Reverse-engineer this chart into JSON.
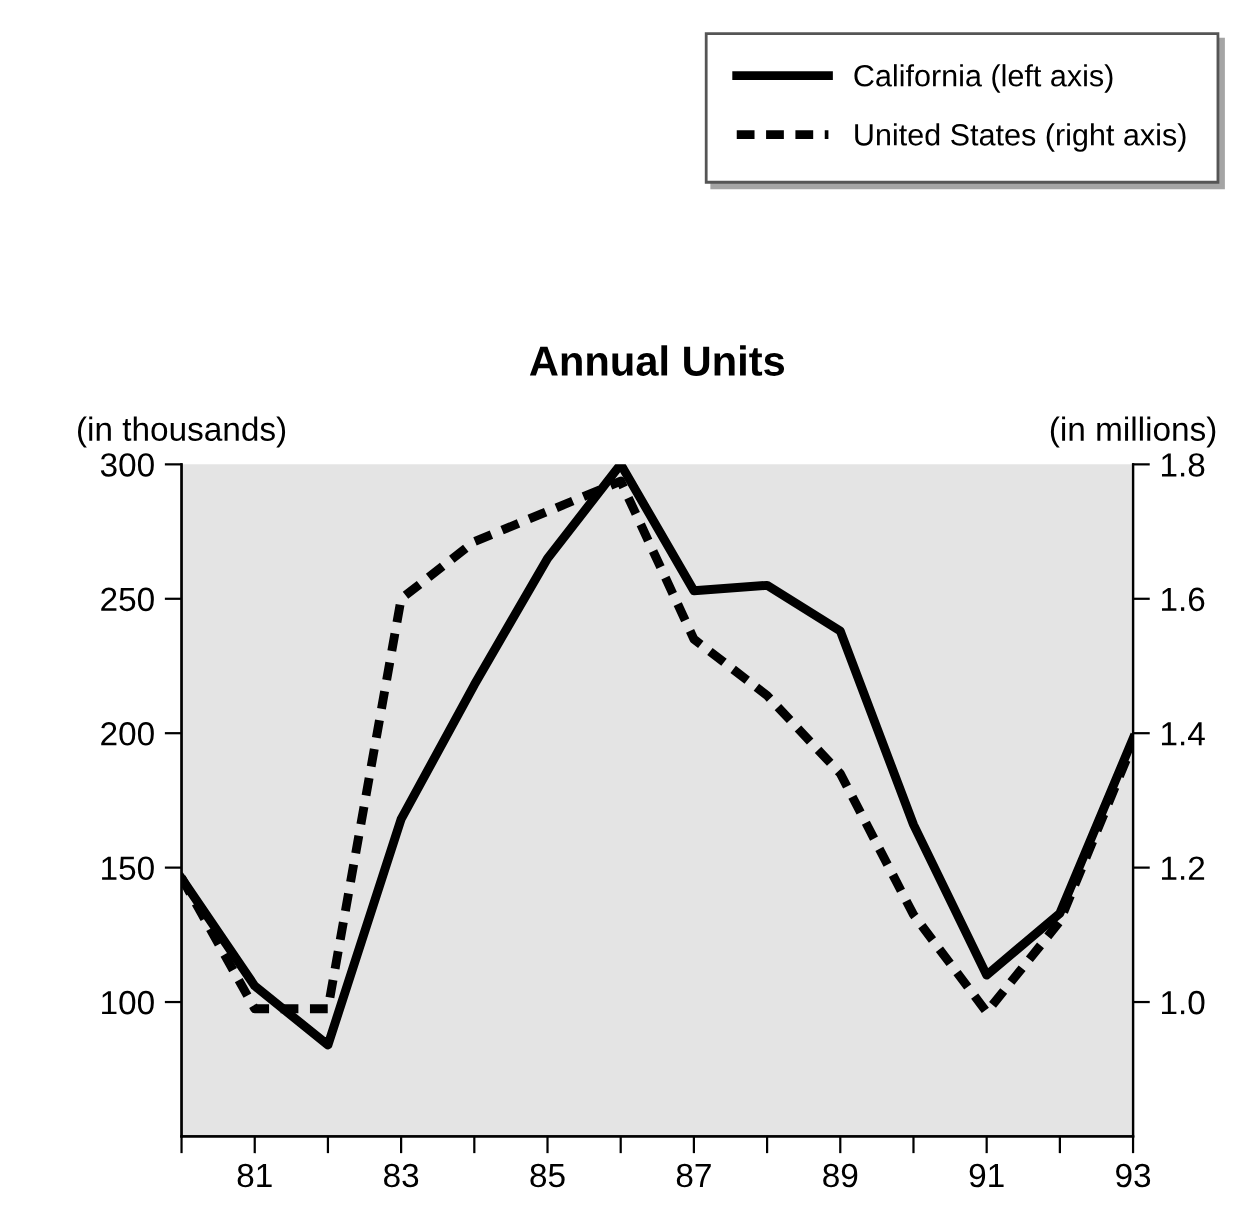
{
  "chart_data": {
    "type": "line",
    "title": "Annual Units",
    "ylabel": "(in thousands)",
    "y2label": "(in millions)",
    "x": [
      80,
      81,
      82,
      83,
      84,
      85,
      86,
      87,
      88,
      89,
      90,
      91,
      92,
      93
    ],
    "series": [
      {
        "name": "California (left axis)",
        "color": "#000000",
        "line_style": "solid",
        "values": [
          146,
          106,
          84,
          168,
          218,
          265,
          300,
          253,
          255,
          238,
          166,
          110,
          133,
          198
        ]
      },
      {
        "name": "United States (right axis)",
        "color": "#000000",
        "line_style": "dotted",
        "axis": "y2",
        "values": [
          1.185,
          0.99,
          0.99,
          1.6,
          1.685,
          1.73,
          1.775,
          1.54,
          1.456,
          1.34,
          1.13,
          0.985,
          1.12,
          1.385
        ]
      }
    ],
    "xlim": [
      80,
      93
    ],
    "xticks": [
      {
        "value": 80,
        "label": null
      },
      81,
      {
        "value": 82,
        "label": null
      },
      83,
      {
        "value": 84,
        "label": null
      },
      85,
      {
        "value": 86,
        "label": null
      },
      87,
      {
        "value": 88,
        "label": null
      },
      89,
      {
        "value": 90,
        "label": null
      },
      91,
      {
        "value": 92,
        "label": null
      },
      93
    ],
    "ylim": [
      50,
      300
    ],
    "yticks": [
      100,
      150,
      200,
      250,
      300
    ],
    "y2lim": [
      0.8,
      1.8
    ],
    "y2ticks": [
      {
        "value": 1.0,
        "label": "1.0"
      },
      1.2,
      1.4,
      1.6,
      1.8
    ],
    "grid": false,
    "legend": "top right",
    "marker": "none"
  }
}
